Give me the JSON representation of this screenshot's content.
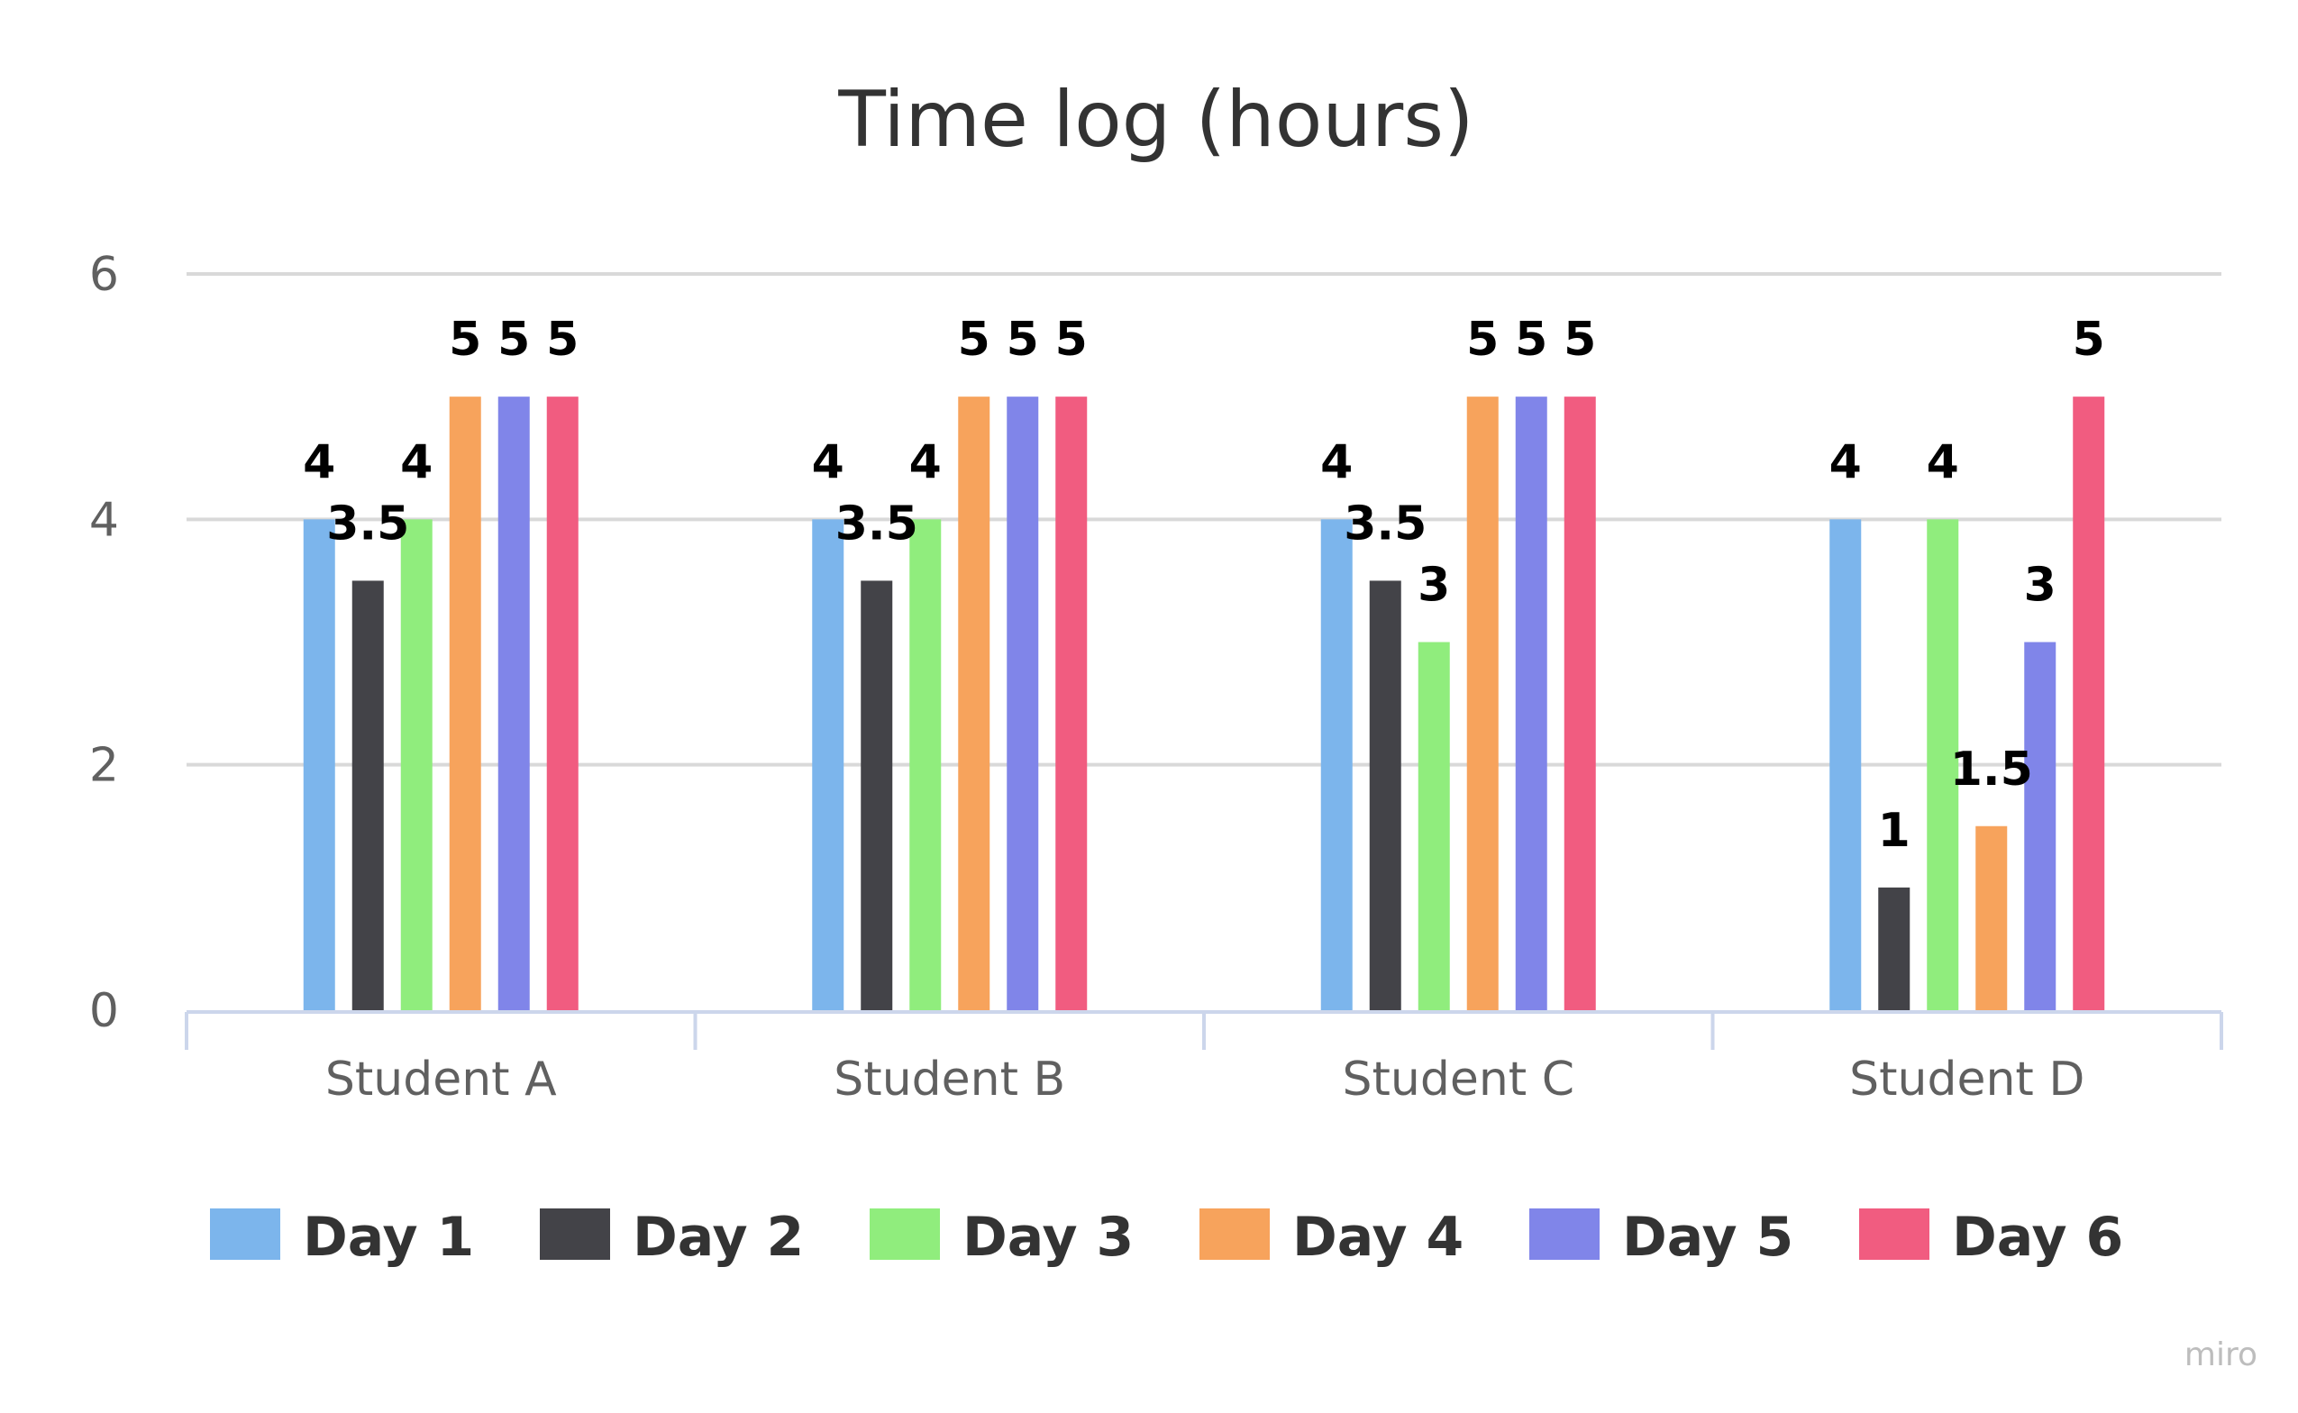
{
  "chart_data": {
    "type": "bar",
    "title": "Time log (hours)",
    "xlabel": "",
    "ylabel": "",
    "categories": [
      "Student A",
      "Student B",
      "Student C",
      "Student D"
    ],
    "yticks": [
      0,
      2,
      4,
      6
    ],
    "ylim": [
      0,
      6
    ],
    "grid": true,
    "legend_position": "bottom",
    "series": [
      {
        "name": "Day 1",
        "color": "#7cb5ec",
        "values": [
          4,
          4,
          4,
          4
        ],
        "labels": [
          "4",
          "4",
          "4",
          "4"
        ]
      },
      {
        "name": "Day 2",
        "color": "#434348",
        "values": [
          3.5,
          3.5,
          3.5,
          1
        ],
        "labels": [
          "3.5",
          "3.5",
          "3.5",
          "1"
        ]
      },
      {
        "name": "Day 3",
        "color": "#90ed7d",
        "values": [
          4,
          4,
          3,
          4
        ],
        "labels": [
          "4",
          "4",
          "3",
          "4"
        ]
      },
      {
        "name": "Day 4",
        "color": "#f7a35c",
        "values": [
          5,
          5,
          5,
          1.5
        ],
        "labels": [
          "5",
          "5",
          "5",
          "1.5"
        ]
      },
      {
        "name": "Day 5",
        "color": "#8085e9",
        "values": [
          5,
          5,
          5,
          3
        ],
        "labels": [
          "5",
          "5",
          "5",
          "3"
        ]
      },
      {
        "name": "Day 6",
        "color": "#f15c80",
        "values": [
          5,
          5,
          5,
          5
        ],
        "labels": [
          "5",
          "5",
          "5",
          "5"
        ]
      }
    ]
  },
  "watermark": "miro"
}
